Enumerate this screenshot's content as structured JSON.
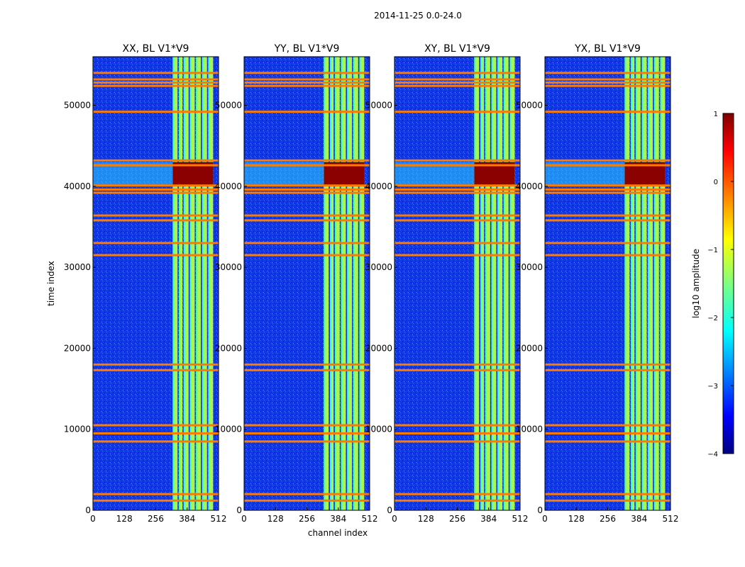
{
  "figure_title": "2014-11-25 0.0-24.0",
  "colors": {
    "background": "#000080",
    "noise_blue": "#0a3cff",
    "band": "#b4ff4a",
    "band_edge": "#40ffb8",
    "hot": "#8b0000",
    "rfi_line": "#ff7b00",
    "cyan_line": "#2fd4ff"
  },
  "chart_data": [
    {
      "type": "heatmap",
      "title": "XX, BL V1*V9",
      "xlabel": "",
      "ylabel": "time index",
      "xticks": [
        "0",
        "128",
        "256",
        "384",
        "512"
      ],
      "yticks": [
        "0",
        "10000",
        "20000",
        "30000",
        "40000",
        "50000"
      ],
      "xlim": [
        0,
        512
      ],
      "ylim": [
        0,
        56000
      ],
      "value": "log10 amplitude"
    },
    {
      "type": "heatmap",
      "title": "YY, BL V1*V9",
      "xlabel": "channel index",
      "ylabel": "",
      "xticks": [
        "0",
        "128",
        "256",
        "384",
        "512"
      ],
      "yticks": [
        "0",
        "10000",
        "20000",
        "30000",
        "40000",
        "50000"
      ],
      "xlim": [
        0,
        512
      ],
      "ylim": [
        0,
        56000
      ],
      "value": "log10 amplitude"
    },
    {
      "type": "heatmap",
      "title": "XY, BL V1*V9",
      "xlabel": "",
      "ylabel": "",
      "xticks": [
        "0",
        "128",
        "256",
        "384",
        "512"
      ],
      "yticks": [
        "0",
        "10000",
        "20000",
        "30000",
        "40000",
        "50000"
      ],
      "xlim": [
        0,
        512
      ],
      "ylim": [
        0,
        56000
      ],
      "value": "log10 amplitude"
    },
    {
      "type": "heatmap",
      "title": "YX, BL V1*V9",
      "xlabel": "",
      "ylabel": "",
      "xticks": [
        "0",
        "128",
        "256",
        "384",
        "512"
      ],
      "yticks": [
        "0",
        "10000",
        "20000",
        "30000",
        "40000",
        "50000"
      ],
      "xlim": [
        0,
        512
      ],
      "ylim": [
        0,
        56000
      ],
      "value": "log10 amplitude"
    }
  ],
  "shared_features": {
    "band_channels": [
      [
        325,
        345
      ],
      [
        350,
        365
      ],
      [
        370,
        390
      ],
      [
        395,
        415
      ],
      [
        420,
        440
      ],
      [
        445,
        465
      ],
      [
        470,
        490
      ]
    ],
    "hot_region_time": [
      40000,
      43000
    ],
    "rfi_rows": [
      1200,
      2000,
      8500,
      9500,
      10500,
      17300,
      18000,
      31500,
      33000,
      35800,
      36400,
      39200,
      39600,
      40100,
      42600,
      43200,
      49200,
      52400,
      52800,
      53200,
      54000
    ]
  },
  "colorbar": {
    "label": "log10 amplitude",
    "ticks": [
      "1",
      "0",
      "−1",
      "−2",
      "−3",
      "−4"
    ],
    "range": [
      -4,
      1
    ],
    "colormap": "jet"
  }
}
